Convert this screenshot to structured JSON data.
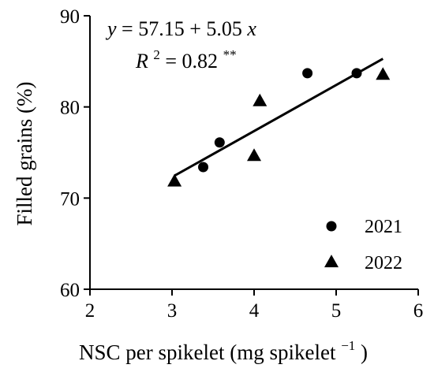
{
  "chart_data": {
    "type": "scatter",
    "xlabel": "NSC per spikelet (mg  spikelet",
    "xlabel_sup": "−1",
    "xlabel_close": ")",
    "ylabel": "Filled grains (%)",
    "xlim": [
      2,
      6
    ],
    "ylim": [
      60,
      90
    ],
    "x_ticks": [
      "2",
      "3",
      "4",
      "5",
      "6"
    ],
    "y_ticks": [
      "60",
      "70",
      "80",
      "90"
    ],
    "grid": false,
    "legend_position": "bottom-right",
    "series": [
      {
        "name": "2021",
        "marker": "circle",
        "color": "#000000",
        "points": [
          [
            3.38,
            73.4
          ],
          [
            3.58,
            76.1
          ],
          [
            4.65,
            83.7
          ],
          [
            5.25,
            83.7
          ]
        ]
      },
      {
        "name": "2022",
        "marker": "triangle",
        "color": "#000000",
        "points": [
          [
            3.03,
            71.8
          ],
          [
            4.0,
            74.6
          ],
          [
            4.07,
            80.6
          ],
          [
            5.57,
            83.5
          ]
        ]
      }
    ],
    "regression": {
      "intercept": 57.15,
      "slope": 5.05,
      "x_range": [
        3.03,
        5.57
      ],
      "equation": {
        "y": "y",
        "eq": "= 57.15 + 5.05",
        "x": "x"
      },
      "r2": {
        "R": "R",
        "sup": "2",
        "eq": "= 0.82",
        "stars": "**"
      }
    }
  }
}
